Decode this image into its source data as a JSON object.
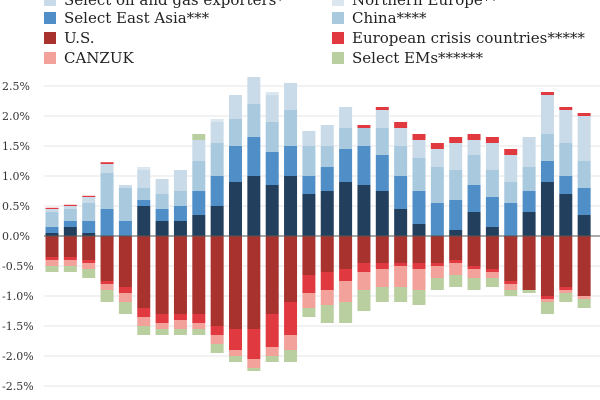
{
  "chart_data": {
    "type": "bar",
    "stacked": true,
    "ylim": [
      -2.5,
      2.5
    ],
    "yticks": [
      2.5,
      2.0,
      1.5,
      1.0,
      0.5,
      0.0,
      -0.5,
      -1.0,
      -1.5,
      -2.0,
      -2.5
    ],
    "ytick_labels": [
      "2.5%",
      "2.0%",
      "1.5%",
      "1.0%",
      "0.5%",
      "0.0%",
      "-0.5%",
      "-1.0%",
      "-1.5%",
      "-2.0%",
      "-2.5%"
    ],
    "legend": [
      {
        "key": "oil",
        "label": "Select oil and gas exporters*",
        "color": "#c9dbe8"
      },
      {
        "key": "northern",
        "label": "Northern Europe**",
        "color": "#dbe6ee"
      },
      {
        "key": "eastasia",
        "label": "Select East Asia***",
        "color": "#4f8ec7"
      },
      {
        "key": "china",
        "label": "China****",
        "color": "#a9c9de"
      },
      {
        "key": "us",
        "label": "U.S.",
        "color": "#a8322e"
      },
      {
        "key": "crisis",
        "label": "European crisis countries*****",
        "color": "#e0393f"
      },
      {
        "key": "canzuk",
        "label": "CANZUK",
        "color": "#f2a19b"
      },
      {
        "key": "ems",
        "label": "Select EMs******",
        "color": "#b9cf9f"
      }
    ],
    "positive_series": [
      {
        "name": "base",
        "color": "#233f5e",
        "values": [
          0.05,
          0.15,
          0.05,
          -0.1,
          0.0,
          0.5,
          0.25,
          0.25,
          0.35,
          0.5,
          0.9,
          1.0,
          0.85,
          1.0,
          0.7,
          0.75,
          0.9,
          0.85,
          0.75,
          0.45,
          0.2,
          0.0,
          0.1,
          0.4,
          0.15,
          -0.05,
          0.4,
          0.9,
          0.7,
          0.35
        ]
      },
      {
        "name": "Select East Asia***",
        "color": "#4f8ec7",
        "values": [
          0.1,
          0.1,
          0.2,
          0.45,
          0.25,
          0.1,
          0.2,
          0.25,
          0.4,
          0.5,
          0.6,
          0.65,
          0.55,
          0.5,
          0.3,
          0.4,
          0.55,
          0.65,
          0.6,
          0.55,
          0.55,
          0.55,
          0.5,
          0.45,
          0.5,
          0.55,
          0.35,
          0.35,
          0.3,
          0.45
        ]
      },
      {
        "name": "China****",
        "color": "#a9c9de",
        "values": [
          0.25,
          0.2,
          0.3,
          0.6,
          0.55,
          0.2,
          0.25,
          0.25,
          0.5,
          0.55,
          0.45,
          0.55,
          0.5,
          0.6,
          0.5,
          0.35,
          0.35,
          0.3,
          0.45,
          0.5,
          0.55,
          0.6,
          0.5,
          0.5,
          0.45,
          0.35,
          0.4,
          0.45,
          0.55,
          0.45
        ]
      },
      {
        "name": "Select oil and gas exporters*",
        "color": "#c9dbe8",
        "values": [
          0.05,
          0.05,
          0.1,
          0.15,
          0.05,
          0.3,
          0.25,
          0.35,
          0.35,
          0.35,
          0.4,
          0.45,
          0.45,
          0.45,
          0.25,
          0.35,
          0.35,
          0.0,
          0.3,
          0.3,
          0.3,
          0.3,
          0.45,
          0.25,
          0.45,
          0.45,
          0.5,
          0.65,
          0.55,
          0.75
        ]
      },
      {
        "name": "Northern Europe**",
        "color": "#dbe6ee",
        "values": [
          0.0,
          0.0,
          0.0,
          0.0,
          0.0,
          0.05,
          0.0,
          0.0,
          0.0,
          0.05,
          0.0,
          0.0,
          0.05,
          0.0,
          0.0,
          0.0,
          0.0,
          0.0,
          0.0,
          0.0,
          0.0,
          0.0,
          0.0,
          0.0,
          0.0,
          0.0,
          0.0,
          0.0,
          0.0,
          0.0
        ]
      },
      {
        "name": "European crisis countries*****",
        "color": "#e0393f",
        "values": [
          0.02,
          0.02,
          0.02,
          0.03,
          0.0,
          0.0,
          0.0,
          0.0,
          0.0,
          0.0,
          0.0,
          0.0,
          0.0,
          0.0,
          0.0,
          0.0,
          0.0,
          0.05,
          0.05,
          0.1,
          0.1,
          0.1,
          0.1,
          0.1,
          0.1,
          0.1,
          0.0,
          0.05,
          0.05,
          0.05
        ]
      },
      {
        "name": "Select EMs******",
        "color": "#b9cf9f",
        "values": [
          0.0,
          0.0,
          0.0,
          0.0,
          0.0,
          0.0,
          0.0,
          0.0,
          0.1,
          0.0,
          0.0,
          0.0,
          0.0,
          0.0,
          0.0,
          0.0,
          0.0,
          0.0,
          0.0,
          0.0,
          0.0,
          0.0,
          0.0,
          0.0,
          0.0,
          0.0,
          0.0,
          0.0,
          0.0,
          0.0
        ]
      }
    ],
    "negative_series": [
      {
        "name": "U.S.",
        "color": "#a8322e",
        "values": [
          -0.35,
          -0.35,
          -0.4,
          -0.75,
          -0.85,
          -1.2,
          -1.3,
          -1.3,
          -1.3,
          -1.5,
          -1.55,
          -1.55,
          -1.3,
          -1.1,
          -0.65,
          -0.6,
          -0.55,
          -0.45,
          -0.45,
          -0.45,
          -0.45,
          -0.45,
          -0.4,
          -0.5,
          -0.55,
          -0.75,
          -0.9,
          -1.0,
          -0.85,
          -1.0
        ]
      },
      {
        "name": "European crisis countries*****",
        "color": "#e0393f",
        "values": [
          -0.05,
          -0.05,
          -0.05,
          -0.05,
          -0.1,
          -0.15,
          -0.15,
          -0.1,
          -0.15,
          -0.15,
          -0.35,
          -0.5,
          -0.55,
          -0.55,
          -0.3,
          -0.3,
          -0.2,
          -0.15,
          -0.1,
          -0.05,
          -0.1,
          -0.05,
          -0.05,
          -0.05,
          -0.05,
          -0.05,
          0.0,
          -0.05,
          -0.05,
          0.0
        ]
      },
      {
        "name": "CANZUK",
        "color": "#f2a19b",
        "values": [
          -0.1,
          -0.1,
          -0.1,
          -0.1,
          -0.15,
          -0.15,
          -0.1,
          -0.15,
          -0.1,
          -0.15,
          -0.1,
          -0.15,
          -0.15,
          -0.25,
          -0.25,
          -0.25,
          -0.35,
          -0.3,
          -0.3,
          -0.35,
          -0.35,
          -0.2,
          -0.2,
          -0.15,
          -0.1,
          -0.1,
          0.0,
          -0.05,
          -0.05,
          -0.05
        ]
      },
      {
        "name": "Select EMs******",
        "color": "#b9cf9f",
        "values": [
          -0.1,
          -0.1,
          -0.15,
          -0.2,
          -0.2,
          -0.15,
          -0.1,
          -0.1,
          -0.1,
          -0.15,
          -0.1,
          -0.05,
          -0.1,
          -0.2,
          -0.15,
          -0.3,
          -0.35,
          -0.35,
          -0.25,
          -0.25,
          -0.25,
          -0.2,
          -0.2,
          -0.2,
          -0.15,
          -0.1,
          -0.05,
          -0.2,
          -0.15,
          -0.15
        ]
      }
    ]
  }
}
